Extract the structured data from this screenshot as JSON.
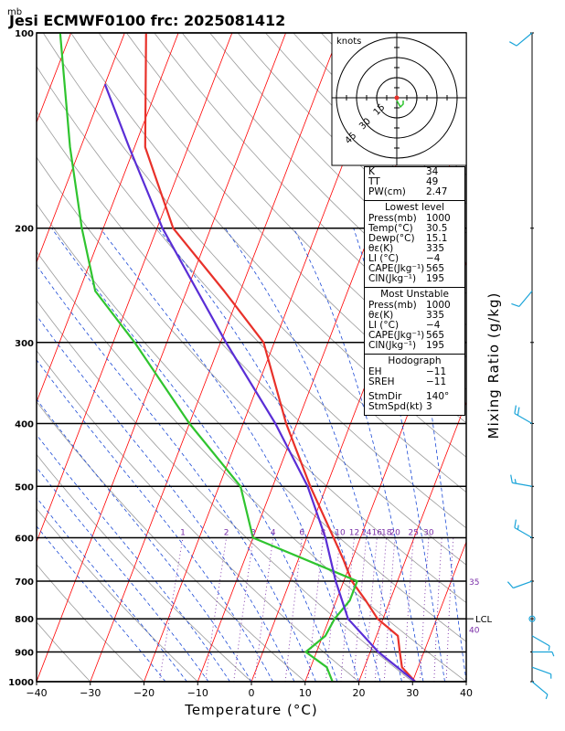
{
  "header": {
    "unit_label": "mb",
    "title": "Jesi ECMWF0100 frc: 2025081412"
  },
  "hodograph": {
    "units_label": "knots",
    "ring_labels": [
      "15",
      "30",
      "45"
    ]
  },
  "indices": {
    "top": [
      {
        "label": "K",
        "value": "34"
      },
      {
        "label": "TT",
        "value": "49"
      },
      {
        "label": "PW(cm)",
        "value": "2.47"
      }
    ],
    "lowest_level": {
      "heading": "Lowest level",
      "rows": [
        {
          "label": "Press(mb)",
          "value": "1000"
        },
        {
          "label": "Temp(°C)",
          "value": "30.5"
        },
        {
          "label": "Dewp(°C)",
          "value": "15.1"
        },
        {
          "label": "θε(K)",
          "value": "335"
        },
        {
          "label": "LI (°C)",
          "value": "−4"
        },
        {
          "label": "CAPE(Jkg⁻¹)",
          "value": "565"
        },
        {
          "label": "CIN(Jkg⁻¹)",
          "value": "195"
        }
      ]
    },
    "most_unstable": {
      "heading": "Most Unstable",
      "rows": [
        {
          "label": "Press(mb)",
          "value": "1000"
        },
        {
          "label": "θε(K)",
          "value": "335"
        },
        {
          "label": "LI (°C)",
          "value": "−4"
        },
        {
          "label": "CAPE(Jkg⁻¹)",
          "value": "565"
        },
        {
          "label": "CIN(Jkg⁻¹)",
          "value": "195"
        }
      ]
    },
    "hodograph_block": {
      "heading": "Hodograph",
      "rows": [
        {
          "label": "EH",
          "value": "−11"
        },
        {
          "label": "SREH",
          "value": "−11"
        }
      ],
      "rows2": [
        {
          "label": "StmDir",
          "value": "140°"
        },
        {
          "label": "StmSpd(kt)",
          "value": "3"
        }
      ]
    }
  },
  "chart_data": {
    "type": "line",
    "subtype": "skew-T log-P",
    "xlabel": "Temperature (°C)",
    "ylabel": "Mixing Ratio (g/kg)",
    "x_ticks": [
      "−40",
      "−30",
      "−20",
      "−10",
      "0",
      "10",
      "20",
      "30",
      "40"
    ],
    "xlim": [
      -40,
      40
    ],
    "y_ticks": [
      "100",
      "200",
      "300",
      "400",
      "500",
      "600",
      "700",
      "800",
      "900",
      "1000"
    ],
    "ylim": [
      1000,
      100
    ],
    "y_scale": "log",
    "mixing_ratio_labels": [
      "1",
      "2",
      "3",
      "4",
      "6",
      "8",
      "10",
      "12",
      "14",
      "16",
      "18",
      "20",
      "25",
      "30"
    ],
    "right_labels": [
      "35",
      "40"
    ],
    "lcl_label": "LCL",
    "lcl_pressure": 800,
    "colors": {
      "temperature": "#e8312a",
      "dewpoint": "#2fc42f",
      "parcel": "#5a2ed6",
      "isotherm": "#ff0000",
      "dry_adiabat": "#9a9a9a",
      "moist_adiabat": "#1b49d6",
      "mixing_ratio": "#7a2ea8",
      "wind": "#1aa4d9"
    },
    "series": [
      {
        "key": "temperature",
        "points": [
          [
            1000,
            30.5
          ],
          [
            950,
            27
          ],
          [
            900,
            25.5
          ],
          [
            850,
            24
          ],
          [
            800,
            19
          ],
          [
            750,
            15.5
          ],
          [
            700,
            11.5
          ],
          [
            650,
            8.5
          ],
          [
            600,
            5
          ],
          [
            500,
            -3
          ],
          [
            400,
            -12
          ],
          [
            300,
            -22
          ],
          [
            250,
            -33
          ],
          [
            200,
            -47
          ],
          [
            150,
            -58
          ],
          [
            100,
            -66
          ]
        ]
      },
      {
        "key": "dewpoint",
        "points": [
          [
            1000,
            15.1
          ],
          [
            950,
            13
          ],
          [
            900,
            8
          ],
          [
            850,
            10.5
          ],
          [
            800,
            11
          ],
          [
            750,
            12.5
          ],
          [
            700,
            12.5
          ],
          [
            600,
            -10
          ],
          [
            500,
            -16
          ],
          [
            400,
            -30
          ],
          [
            300,
            -46
          ],
          [
            250,
            -57
          ],
          [
            200,
            -64
          ],
          [
            150,
            -72
          ],
          [
            100,
            -82
          ]
        ]
      },
      {
        "key": "parcel",
        "points": [
          [
            1000,
            30.5
          ],
          [
            900,
            21.5
          ],
          [
            800,
            13.5
          ],
          [
            700,
            8.5
          ],
          [
            600,
            3.5
          ],
          [
            500,
            -3.5
          ],
          [
            400,
            -14
          ],
          [
            300,
            -29
          ],
          [
            200,
            -49
          ],
          [
            150,
            -61
          ],
          [
            120,
            -70
          ]
        ]
      }
    ],
    "wind_profile": [
      {
        "p": 100,
        "dir": 230,
        "spd": 10
      },
      {
        "p": 250,
        "dir": 220,
        "spd": 10
      },
      {
        "p": 400,
        "dir": 300,
        "spd": 20
      },
      {
        "p": 500,
        "dir": 280,
        "spd": 15
      },
      {
        "p": 600,
        "dir": 300,
        "spd": 15
      },
      {
        "p": 700,
        "dir": 250,
        "spd": 10
      },
      {
        "p": 800,
        "dir": 0,
        "spd": 0
      },
      {
        "p": 850,
        "dir": 120,
        "spd": 5
      },
      {
        "p": 900,
        "dir": 90,
        "spd": 5
      },
      {
        "p": 950,
        "dir": 110,
        "spd": 5
      },
      {
        "p": 1000,
        "dir": 130,
        "spd": 5
      }
    ]
  }
}
